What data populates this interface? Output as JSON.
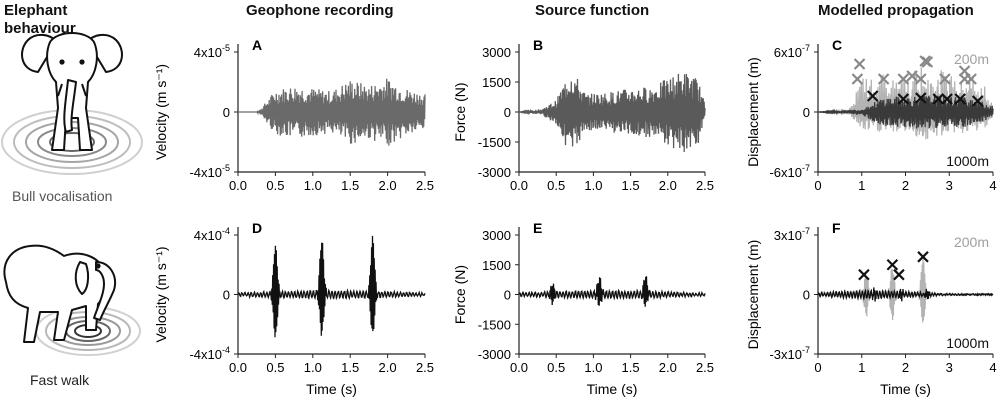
{
  "headers": {
    "behaviour": [
      "Elephant",
      "behaviour"
    ],
    "geophone": "Geophone recording",
    "source": "Source function",
    "modelled": "Modelled propagation"
  },
  "row_labels": {
    "top": "Bull vocalisation",
    "bottom": "Fast walk"
  },
  "icons": {
    "elephant_top": "standing-elephant-icon",
    "elephant_bottom": "walking-elephant-icon",
    "ripples": "ground-ripple-rings"
  },
  "colors": {
    "trace_dark": "#111111",
    "trace_mid": "#555555",
    "trace_light": "#b3b3b3",
    "marker": "#444444",
    "marker_light": "#888888"
  },
  "chart_data": [
    {
      "panel": "A",
      "type": "line",
      "xlabel": "",
      "ylabel": "Velocity (m s⁻¹)",
      "xlim": [
        0,
        2.5
      ],
      "ylim": [
        -4e-05,
        4e-05
      ],
      "xticks": [
        "0.0",
        "0.5",
        "1.0",
        "1.5",
        "2.0",
        "2.5"
      ],
      "yticks": [
        {
          "mant": "4x10",
          "exp": "-5"
        },
        {
          "mant": "0",
          "exp": ""
        },
        {
          "mant": "-4x10",
          "exp": "-5"
        }
      ],
      "series": [
        {
          "color": "#6a6a6a",
          "x": [
            0.0,
            0.25,
            0.3,
            0.5,
            0.75,
            1.0,
            1.25,
            1.5,
            1.75,
            2.0,
            2.25,
            2.5
          ],
          "y": [
            0,
            0,
            2e-06,
            1.5e-05,
            1.8e-05,
            1.6e-05,
            1.4e-05,
            2.2e-05,
            1.8e-05,
            2.3e-05,
            1.6e-05,
            1.2e-05
          ]
        }
      ]
    },
    {
      "panel": "B",
      "type": "line",
      "xlabel": "",
      "ylabel": "Force (N)",
      "xlim": [
        0,
        2.5
      ],
      "ylim": [
        -3000,
        3000
      ],
      "xticks": [
        "0.0",
        "0.5",
        "1.0",
        "1.5",
        "2.0",
        "2.5"
      ],
      "yticks": [
        "3000",
        "1500",
        "0",
        "-1500",
        "-3000"
      ],
      "series": [
        {
          "color": "#5a5a5a",
          "x": [
            0.0,
            0.3,
            0.5,
            0.7,
            0.9,
            1.2,
            1.5,
            1.8,
            2.2,
            2.4,
            2.5
          ],
          "y": [
            0,
            150,
            600,
            2300,
            900,
            1000,
            1200,
            1300,
            2100,
            1700,
            400
          ]
        }
      ]
    },
    {
      "panel": "C",
      "type": "line",
      "xlabel": "",
      "ylabel": "Displacement (m)",
      "xlim": [
        0,
        4
      ],
      "ylim": [
        -6e-07,
        6e-07
      ],
      "xticks": [
        "0",
        "1",
        "2",
        "3",
        "4"
      ],
      "yticks": [
        {
          "mant": "6x10",
          "exp": "-7"
        },
        {
          "mant": "0",
          "exp": ""
        },
        {
          "mant": "-6x10",
          "exp": "-7"
        }
      ],
      "annotations": [
        "200m",
        "1000m"
      ],
      "series": [
        {
          "name": "200m",
          "color": "#b3b3b3",
          "envelope_x": [
            0,
            0.7,
            1.0,
            1.5,
            2.0,
            2.5,
            3.0,
            3.5,
            3.8,
            4.0
          ],
          "envelope_y": [
            0,
            2e-08,
            3.5e-07,
            3.8e-07,
            3.6e-07,
            5.4e-07,
            3.8e-07,
            4e-07,
            3e-07,
            1e-07
          ]
        },
        {
          "name": "1000m",
          "color": "#3a3a3a",
          "envelope_x": [
            0,
            1.0,
            1.5,
            2.0,
            2.5,
            3.0,
            3.5,
            4.0
          ],
          "envelope_y": [
            0,
            3e-08,
            1.5e-07,
            1.6e-07,
            1.7e-07,
            1.6e-07,
            1.5e-07,
            6e-08
          ]
        }
      ],
      "markers_200m": {
        "x": [
          0.95,
          0.9,
          1.5,
          1.95,
          2.15,
          2.35,
          2.45,
          2.5,
          2.9,
          3.35,
          3.35,
          3.5
        ],
        "y": [
          4.8e-07,
          3.3e-07,
          3.3e-07,
          3.3e-07,
          3.6e-07,
          3.3e-07,
          5.1e-07,
          5e-07,
          3.3e-07,
          3.3e-07,
          4.1e-07,
          3.3e-07
        ]
      },
      "markers_1000m": {
        "x": [
          1.25,
          1.95,
          2.35,
          2.75,
          2.95,
          3.25,
          3.65
        ],
        "y": [
          1.6e-07,
          1.3e-07,
          1.4e-07,
          1.3e-07,
          1.3e-07,
          1.3e-07,
          1.1e-07
        ]
      }
    },
    {
      "panel": "D",
      "type": "line",
      "xlabel": "Time (s)",
      "ylabel": "Velocity (m s⁻¹)",
      "xlim": [
        0,
        2.5
      ],
      "ylim": [
        -0.0004,
        0.0004
      ],
      "xticks": [
        "0.0",
        "0.5",
        "1.0",
        "1.5",
        "2.0",
        "2.5"
      ],
      "yticks": [
        {
          "mant": "4x10",
          "exp": "-4"
        },
        {
          "mant": "0",
          "exp": ""
        },
        {
          "mant": "-4x10",
          "exp": "-4"
        }
      ],
      "series": [
        {
          "color": "#111111",
          "spikes_x": [
            0.5,
            1.12,
            1.8
          ],
          "spikes_peak": [
            0.00032,
            0.00036,
            0.00038
          ],
          "spikes_trough": [
            -0.00028,
            -0.00026,
            -0.00026
          ]
        }
      ]
    },
    {
      "panel": "E",
      "type": "line",
      "xlabel": "Time (s)",
      "ylabel": "Force (N)",
      "xlim": [
        0,
        2.5
      ],
      "ylim": [
        -3000,
        3000
      ],
      "xticks": [
        "0.0",
        "0.5",
        "1.0",
        "1.5",
        "2.0",
        "2.5"
      ],
      "yticks": [
        "3000",
        "1500",
        "0",
        "-1500",
        "-3000"
      ],
      "series": [
        {
          "color": "#111111",
          "spikes_x": [
            0.45,
            1.08,
            1.7
          ],
          "spikes_peak": [
            500,
            800,
            900
          ],
          "spikes_trough": [
            -400,
            -500,
            -500
          ]
        }
      ]
    },
    {
      "panel": "F",
      "type": "line",
      "xlabel": "Time (s)",
      "ylabel": "Displacement (m)",
      "xlim": [
        0,
        4
      ],
      "ylim": [
        -3e-07,
        3e-07
      ],
      "xticks": [
        "0",
        "1",
        "2",
        "3",
        "4"
      ],
      "yticks": [
        {
          "mant": "3x10",
          "exp": "-7"
        },
        {
          "mant": "0",
          "exp": ""
        },
        {
          "mant": "-3x10",
          "exp": "-7"
        }
      ],
      "annotations": [
        "200m",
        "1000m"
      ],
      "series": [
        {
          "name": "200m",
          "color": "#b3b3b3",
          "spikes_x": [
            1.1,
            1.7,
            2.4
          ],
          "spikes_peak": [
            1e-07,
            1.3e-07,
            1.8e-07
          ],
          "spikes_trough": [
            -1e-07,
            -1.2e-07,
            -1.4e-07
          ]
        },
        {
          "name": "1000m",
          "color": "#111111",
          "spikes_x": [
            1.3,
            1.9,
            2.5
          ],
          "spikes_peak": [
            2e-08,
            2e-08,
            2e-08
          ],
          "spikes_trough": [
            -2e-08,
            -2e-08,
            -2e-08
          ]
        }
      ],
      "markers": {
        "x": [
          1.05,
          1.7,
          1.85,
          2.4
        ],
        "y": [
          1e-07,
          1.5e-07,
          1e-07,
          1.9e-07
        ]
      }
    }
  ]
}
